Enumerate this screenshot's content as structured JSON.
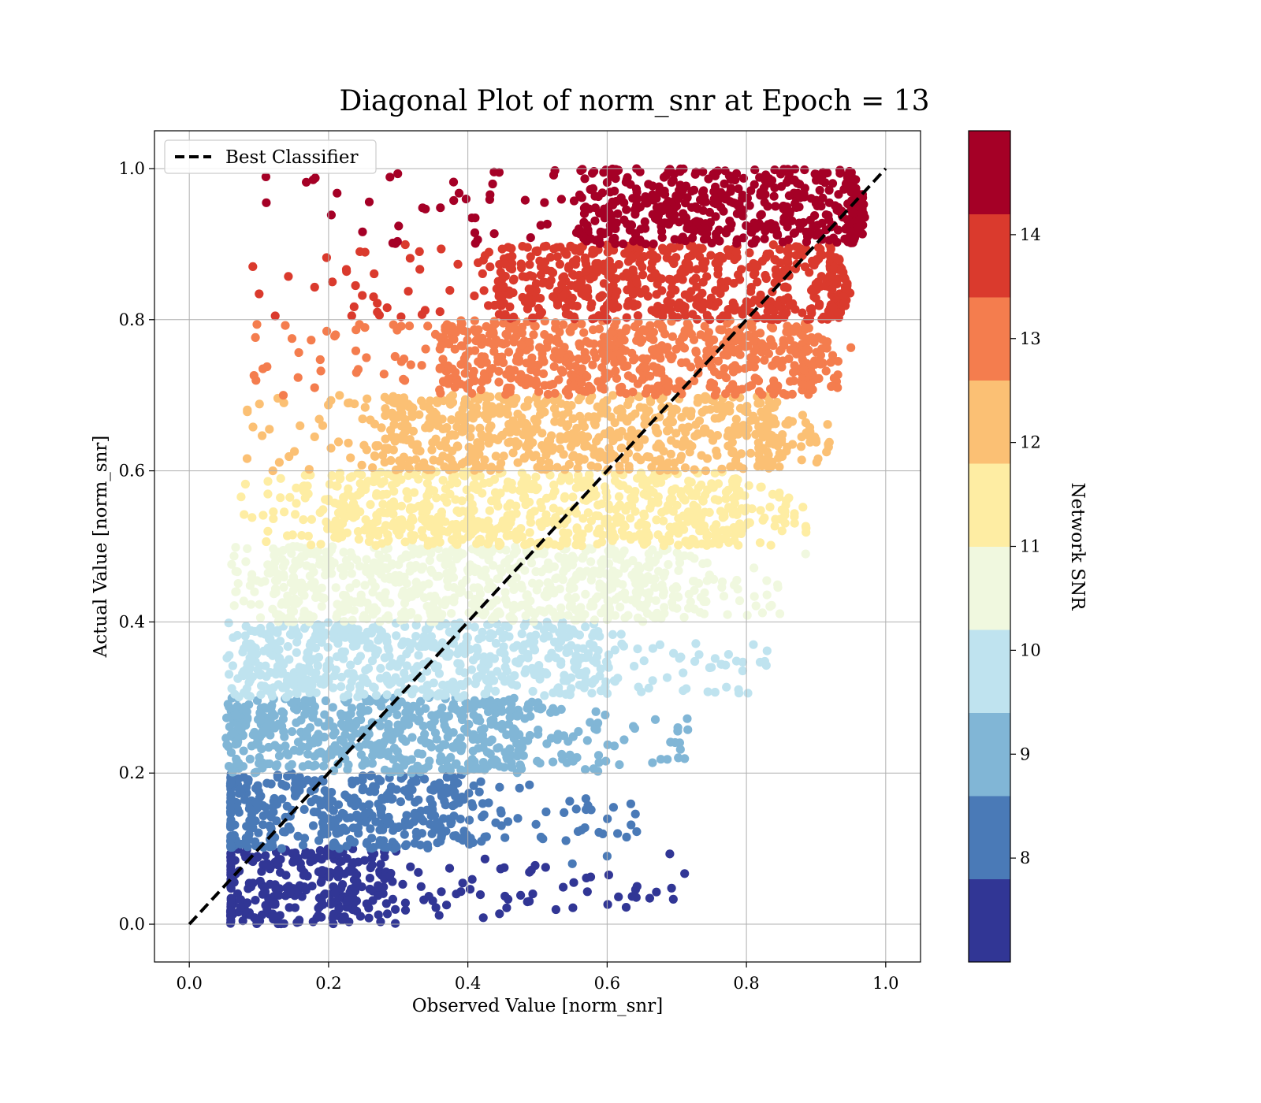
{
  "chart_data": {
    "type": "scatter",
    "title": "Diagonal Plot of norm_snr at Epoch = 13",
    "xlabel": "Observed Value [norm_snr]",
    "ylabel": "Actual Value [norm_snr]",
    "xlim": [
      -0.05,
      1.05
    ],
    "ylim": [
      -0.05,
      1.05
    ],
    "xticks": [
      "0.0",
      "0.2",
      "0.4",
      "0.6",
      "0.8",
      "1.0"
    ],
    "yticks": [
      "0.0",
      "0.2",
      "0.4",
      "0.6",
      "0.8",
      "1.0"
    ],
    "grid": true,
    "legend": {
      "placement": "top-left",
      "entries": [
        "Best Classifier"
      ]
    },
    "reference_line": {
      "name": "Best Classifier",
      "style": "dashed",
      "color": "#000000",
      "x": [
        0,
        1
      ],
      "y": [
        0,
        1
      ]
    },
    "colorbar": {
      "label": "Network SNR",
      "range": [
        7,
        15
      ],
      "ticks": [
        "8",
        "9",
        "10",
        "11",
        "12",
        "13",
        "14"
      ],
      "colors": [
        "#313695",
        "#4a7ab7",
        "#81b6d6",
        "#bfe3ef",
        "#f0f8df",
        "#feeda3",
        "#fbc074",
        "#f47d4e",
        "#da3a2d",
        "#a50026"
      ]
    },
    "bands": [
      {
        "y": [
          0.0,
          0.1
        ],
        "x_core": [
          0.06,
          0.28
        ],
        "x_tail": 0.72,
        "color": "#313695"
      },
      {
        "y": [
          0.1,
          0.2
        ],
        "x_core": [
          0.06,
          0.38
        ],
        "x_tail": 0.65,
        "color": "#4a7ab7"
      },
      {
        "y": [
          0.2,
          0.3
        ],
        "x_core": [
          0.07,
          0.48
        ],
        "x_tail": 0.72,
        "color": "#81b6d6"
      },
      {
        "y": [
          0.3,
          0.4
        ],
        "x_core": [
          0.09,
          0.58
        ],
        "x_tail": 0.83,
        "color": "#bfe3ef"
      },
      {
        "y": [
          0.4,
          0.5
        ],
        "x_core": [
          0.13,
          0.68
        ],
        "x_tail": 0.85,
        "color": "#f0f8df"
      },
      {
        "y": [
          0.5,
          0.6
        ],
        "x_core": [
          0.2,
          0.78
        ],
        "x_tail": 0.89,
        "color": "#feeda3"
      },
      {
        "y": [
          0.6,
          0.7
        ],
        "x_core": [
          0.28,
          0.83
        ],
        "x_tail": 0.92,
        "color": "#fbc074"
      },
      {
        "y": [
          0.7,
          0.8
        ],
        "x_core": [
          0.36,
          0.88
        ],
        "x_tail": 0.94,
        "color": "#f47d4e"
      },
      {
        "y": [
          0.8,
          0.9
        ],
        "x_core": [
          0.44,
          0.92
        ],
        "x_tail": 0.95,
        "color": "#da3a2d"
      },
      {
        "y": [
          0.9,
          1.0
        ],
        "x_core": [
          0.56,
          0.95
        ],
        "x_tail": 0.97,
        "color": "#a50026"
      }
    ],
    "outliers": [
      {
        "x": 0.445,
        "y": 0.995,
        "color": "#a50026"
      },
      {
        "x": 0.335,
        "y": 0.948,
        "color": "#a50026"
      },
      {
        "x": 0.51,
        "y": 0.955,
        "color": "#a50026"
      },
      {
        "x": 0.41,
        "y": 0.915,
        "color": "#a50026"
      },
      {
        "x": 0.245,
        "y": 0.89,
        "color": "#da3a2d"
      },
      {
        "x": 0.18,
        "y": 0.843,
        "color": "#da3a2d"
      },
      {
        "x": 0.27,
        "y": 0.81,
        "color": "#da3a2d"
      },
      {
        "x": 0.175,
        "y": 0.773,
        "color": "#f47d4e"
      },
      {
        "x": 0.21,
        "y": 0.78,
        "color": "#f47d4e"
      },
      {
        "x": 0.135,
        "y": 0.7,
        "color": "#f47d4e"
      },
      {
        "x": 0.18,
        "y": 0.71,
        "color": "#f47d4e"
      },
      {
        "x": 0.24,
        "y": 0.73,
        "color": "#f47d4e"
      },
      {
        "x": 0.115,
        "y": 0.655,
        "color": "#fbc074"
      },
      {
        "x": 0.12,
        "y": 0.6,
        "color": "#fbc074"
      },
      {
        "x": 0.18,
        "y": 0.645,
        "color": "#fbc074"
      },
      {
        "x": 0.23,
        "y": 0.69,
        "color": "#fbc074"
      },
      {
        "x": 0.69,
        "y": 0.093,
        "color": "#313695"
      },
      {
        "x": 0.695,
        "y": 0.033,
        "color": "#313695"
      },
      {
        "x": 0.6,
        "y": 0.09,
        "color": "#4a7ab7"
      },
      {
        "x": 0.615,
        "y": 0.12,
        "color": "#4a7ab7"
      },
      {
        "x": 0.55,
        "y": 0.08,
        "color": "#4a7ab7"
      },
      {
        "x": 0.715,
        "y": 0.272,
        "color": "#81b6d6"
      },
      {
        "x": 0.755,
        "y": 0.307,
        "color": "#bfe3ef"
      },
      {
        "x": 0.885,
        "y": 0.49,
        "color": "#f0f8df"
      },
      {
        "x": 0.81,
        "y": 0.37,
        "color": "#bfe3ef"
      },
      {
        "x": 0.96,
        "y": 0.922,
        "color": "#a50026"
      },
      {
        "x": 0.95,
        "y": 0.763,
        "color": "#f47d4e"
      }
    ]
  }
}
